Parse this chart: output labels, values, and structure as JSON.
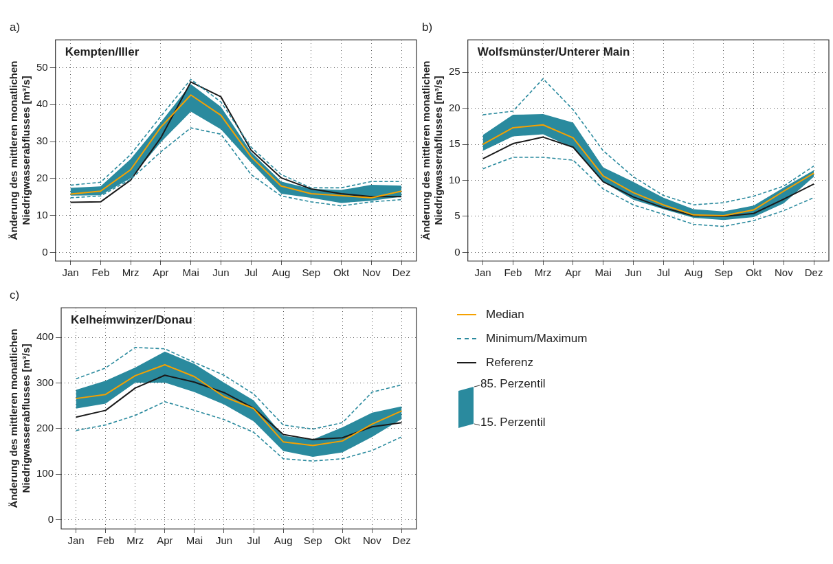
{
  "chart_data": [
    {
      "type": "line",
      "title": "Kempten/Iller",
      "annotations": [
        "a)"
      ],
      "ylabel": "Änderung des mittleren monatlichen\nNiedrigwasserabflusses [m³/s]",
      "categories": [
        "Jan",
        "Feb",
        "Mrz",
        "Apr",
        "Mai",
        "Jun",
        "Jul",
        "Aug",
        "Sep",
        "Okt",
        "Nov",
        "Dez"
      ],
      "ylim": [
        -2.3,
        57.5
      ],
      "yticks": [
        0,
        10,
        20,
        30,
        40,
        50
      ],
      "grid": true,
      "legend": false,
      "marker": "none",
      "line_style": "solid",
      "series": [
        {
          "color": "#2a8a9e",
          "line_style": "dashed",
          "values": [
            18.2,
            19.0,
            26.5,
            36.8,
            46.8,
            40.7,
            28.5,
            21.1,
            17.5,
            17.5,
            19.2,
            19.2
          ]
        },
        {
          "color": "#2a8a9e",
          "line_style": "dashed",
          "values": [
            14.8,
            15.3,
            19.8,
            27.2,
            33.7,
            32.0,
            21.1,
            15.3,
            13.7,
            12.6,
            13.7,
            14.3
          ]
        },
        {
          "color": "#f5a100",
          "values": [
            15.8,
            16.6,
            22.4,
            33.9,
            42.6,
            37.1,
            25.9,
            18.0,
            15.9,
            15.4,
            14.8,
            16.6
          ],
          "lower": [
            15.4,
            15.5,
            20.1,
            29.8,
            38.1,
            33.3,
            24.3,
            15.9,
            14.8,
            13.4,
            14.0,
            15.1
          ],
          "upper": [
            17.5,
            17.9,
            25.3,
            35.2,
            45.5,
            39.4,
            27.2,
            19.2,
            17.2,
            16.9,
            18.3,
            18.1
          ]
        },
        {
          "color": "#1a1a1a",
          "values": [
            13.6,
            13.7,
            19.6,
            31.0,
            46.1,
            42.1,
            27.7,
            20.2,
            17.2,
            15.9,
            15.1,
            15.1
          ]
        }
      ]
    },
    {
      "type": "line",
      "title": "Wolfsmünster/Unterer Main",
      "annotations": [
        "b)"
      ],
      "ylabel": "Änderung des mittleren monatlichen\nNiedrigwasserabflusses [m³/s]",
      "categories": [
        "Jan",
        "Feb",
        "Mrz",
        "Apr",
        "Mai",
        "Jun",
        "Jul",
        "Aug",
        "Sep",
        "Okt",
        "Nov",
        "Dez"
      ],
      "ylim": [
        -1.2,
        29.5
      ],
      "yticks": [
        0,
        5,
        10,
        15,
        20,
        25
      ],
      "grid": true,
      "legend": false,
      "marker": "none",
      "line_style": "solid",
      "series": [
        {
          "color": "#2a8a9e",
          "line_style": "dashed",
          "values": [
            19.1,
            19.6,
            24.1,
            19.8,
            14.1,
            10.5,
            7.9,
            6.6,
            6.9,
            7.8,
            9.2,
            12.0
          ]
        },
        {
          "color": "#2a8a9e",
          "line_style": "dashed",
          "values": [
            11.6,
            13.2,
            13.2,
            12.8,
            8.8,
            6.6,
            5.3,
            3.9,
            3.6,
            4.4,
            5.8,
            7.6
          ]
        },
        {
          "color": "#f5a100",
          "values": [
            15.0,
            17.3,
            17.7,
            15.9,
            10.6,
            8.3,
            6.6,
            5.2,
            5.1,
            5.9,
            8.5,
            11.0
          ],
          "lower": [
            14.1,
            16.1,
            16.4,
            14.5,
            9.8,
            7.3,
            6.0,
            4.8,
            4.5,
            4.9,
            6.8,
            10.5
          ],
          "upper": [
            16.3,
            19.1,
            19.2,
            18.0,
            11.8,
            9.8,
            7.6,
            6.0,
            5.7,
            6.5,
            9.0,
            11.4
          ]
        },
        {
          "color": "#1a1a1a",
          "values": [
            13.0,
            15.1,
            16.0,
            14.6,
            9.8,
            7.7,
            6.2,
            5.1,
            5.0,
            5.4,
            7.4,
            9.5
          ]
        }
      ]
    },
    {
      "type": "line",
      "title": "Kelheimwinzer/Donau",
      "annotations": [
        "c)",
        "85. Perzentil",
        "15. Perzentil"
      ],
      "ylabel": "Änderung des mittleren monatlichen\nNiedrigwasserabflusses [m³/s]",
      "categories": [
        "Jan",
        "Feb",
        "Mrz",
        "Apr",
        "Mai",
        "Jun",
        "Jul",
        "Aug",
        "Sep",
        "Okt",
        "Nov",
        "Dez"
      ],
      "ylim": [
        -20,
        465
      ],
      "yticks": [
        0,
        100,
        200,
        300,
        400
      ],
      "grid": true,
      "legend": "right",
      "marker": "none",
      "line_style": "solid",
      "series": [
        {
          "name": "Minimum/Maximum",
          "color": "#2a8a9e",
          "line_style": "dashed",
          "values": [
            309,
            333,
            378,
            375,
            345,
            317,
            276,
            208,
            199,
            213,
            280,
            296
          ]
        },
        {
          "color": "#2a8a9e",
          "line_style": "dashed",
          "values": [
            196,
            208,
            229,
            259,
            240,
            220,
            192,
            134,
            129,
            134,
            152,
            182
          ]
        },
        {
          "name": "Median",
          "color": "#f5a100",
          "values": [
            266,
            275,
            316,
            340,
            314,
            270,
            244,
            171,
            163,
            173,
            210,
            239
          ],
          "lower": [
            244,
            255,
            301,
            301,
            280,
            253,
            216,
            151,
            138,
            148,
            182,
            221
          ],
          "upper": [
            285,
            305,
            334,
            369,
            342,
            301,
            262,
            184,
            176,
            203,
            235,
            249
          ]
        },
        {
          "name": "Referenz",
          "color": "#1a1a1a",
          "values": [
            225,
            240,
            289,
            317,
            302,
            279,
            245,
            187,
            176,
            180,
            204,
            213
          ]
        }
      ]
    }
  ]
}
